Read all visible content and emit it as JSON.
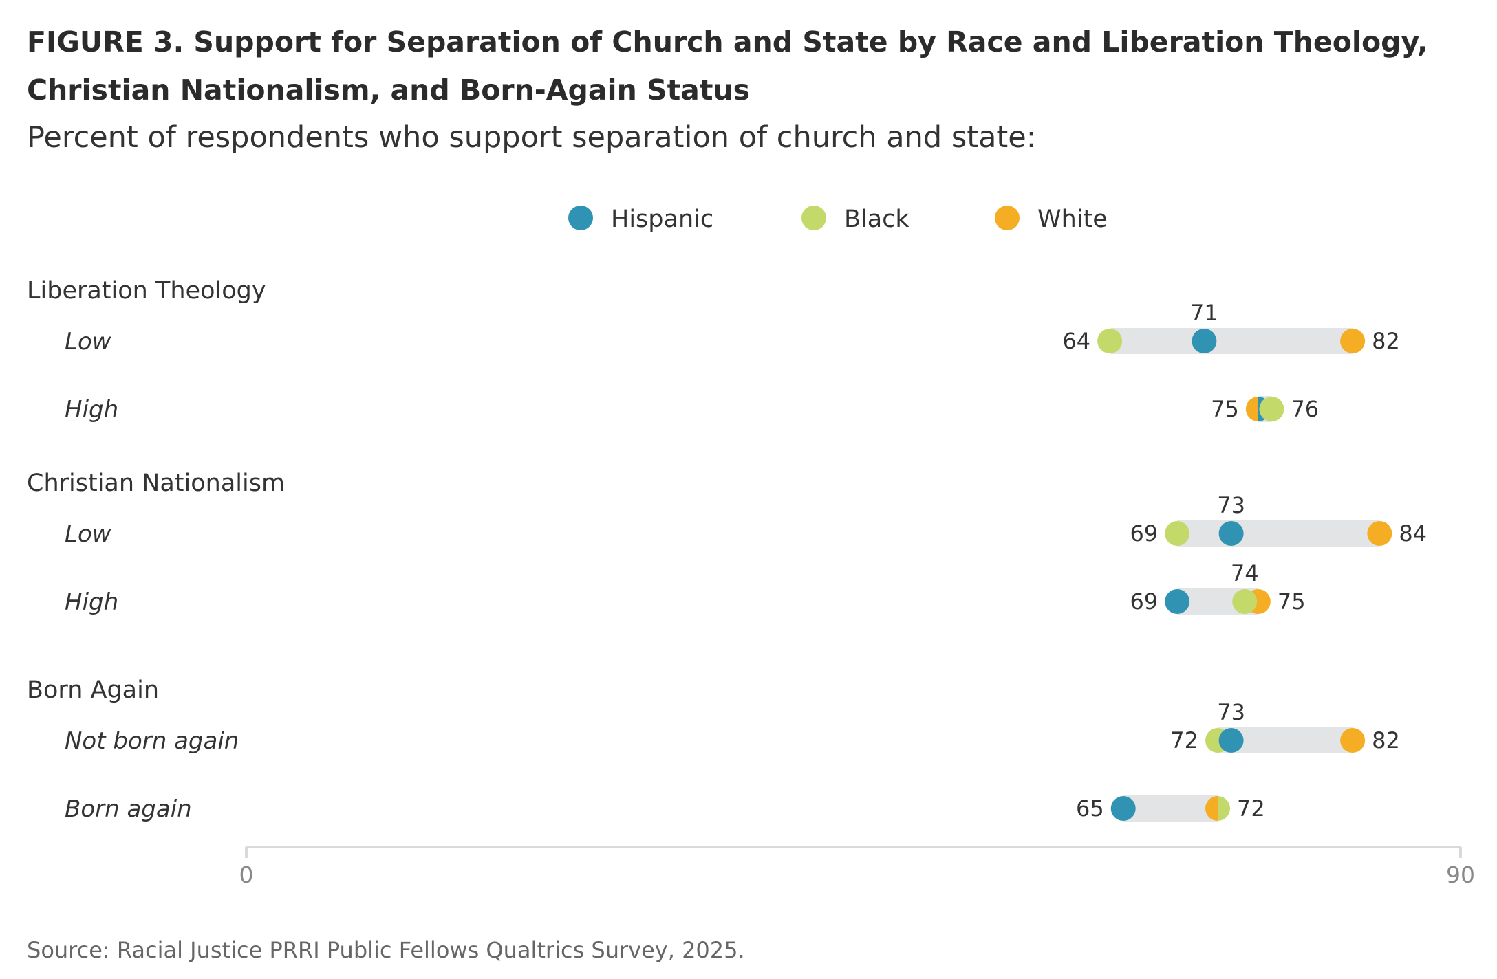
{
  "title": "FIGURE 3. Support for Separation of Church and State by Race and Liberation Theology, Christian Nationalism, and Born-Again Status",
  "subtitle": "Percent of respondents who support separation of church and state:",
  "source": "Source: Racial Justice PRRI Public Fellows Qualtrics Survey, 2025.",
  "colors": {
    "Hispanic": "#3193b3",
    "Black": "#c3d96a",
    "White": "#f5ad23",
    "track": "#e3e4e5",
    "axis": "#d9d9d9"
  },
  "chart_data": {
    "type": "dot",
    "title": "FIGURE 3. Support for Separation of Church and State by Race and Liberation Theology, Christian Nationalism, and Born-Again Status",
    "subtitle": "Percent of respondents who support separation of church and state:",
    "xlim": [
      0,
      90
    ],
    "x_ticks": [
      "0",
      "90"
    ],
    "legend_position": "top-center",
    "grid": false,
    "series": [
      {
        "name": "Hispanic"
      },
      {
        "name": "Black"
      },
      {
        "name": "White"
      }
    ],
    "groups": [
      {
        "label": "Liberation Theology",
        "rows": [
          {
            "label": "Low",
            "values": {
              "Hispanic": 71,
              "Black": 64,
              "White": 82
            },
            "labels": [
              "64",
              "71",
              "82"
            ]
          },
          {
            "label": "High",
            "values": {
              "Hispanic": 75,
              "Black": 76,
              "White": 75
            },
            "labels": [
              "75",
              "76"
            ]
          }
        ]
      },
      {
        "label": "Christian Nationalism",
        "rows": [
          {
            "label": "Low",
            "values": {
              "Hispanic": 73,
              "Black": 69,
              "White": 84
            },
            "labels": [
              "69",
              "73",
              "84"
            ]
          },
          {
            "label": "High",
            "values": {
              "Hispanic": 69,
              "Black": 74,
              "White": 75
            },
            "labels": [
              "69",
              "74",
              "75"
            ]
          }
        ]
      },
      {
        "label": "Born Again",
        "rows": [
          {
            "label": "Not born again",
            "values": {
              "Hispanic": 73,
              "Black": 72,
              "White": 82
            },
            "labels": [
              "72",
              "73",
              "82"
            ]
          },
          {
            "label": "Born again",
            "values": {
              "Hispanic": 65,
              "Black": 72,
              "White": 72
            },
            "labels": [
              "65",
              "72"
            ]
          }
        ]
      }
    ]
  }
}
